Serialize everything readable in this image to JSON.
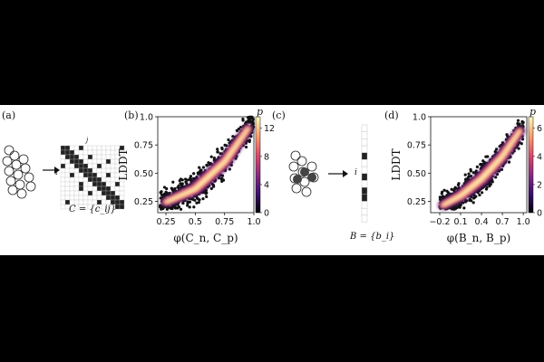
{
  "panels": {
    "a": {
      "label": "(a)",
      "matrix_row_label": "i",
      "matrix_col_label": "j",
      "caption": "C = {c_ij}"
    },
    "c": {
      "label": "(c)",
      "vector_row_label": "i",
      "caption": "B = {b_i}"
    }
  },
  "chart_data": [
    {
      "panel_label": "(b)",
      "type": "scatter",
      "xlabel": "φ(C_n, C_p)",
      "ylabel": "LDDT",
      "colorbar_label": "p",
      "colorbar_ticks": [
        "0",
        "4",
        "8",
        "12"
      ],
      "x_ticks": [
        "0.25",
        "0.5",
        "0.75",
        "1.0"
      ],
      "y_ticks": [
        "0.25",
        "0.50",
        "0.75",
        "1.0"
      ],
      "xlim": [
        0.18,
        1.0
      ],
      "ylim": [
        0.15,
        1.0
      ],
      "colormap": [
        "#000004",
        "#3b0f70",
        "#8c2981",
        "#de4968",
        "#fe9f6d",
        "#fcfdbf"
      ],
      "trend": [
        [
          0.2,
          0.22
        ],
        [
          0.5,
          0.36
        ],
        [
          0.75,
          0.6
        ],
        [
          0.92,
          0.85
        ],
        [
          1.0,
          0.97
        ]
      ]
    },
    {
      "panel_label": "(d)",
      "type": "scatter",
      "xlabel": "φ(B_n, B_p)",
      "ylabel": "LDDT",
      "colorbar_label": "p",
      "colorbar_ticks": [
        "0",
        "2",
        "4",
        "6"
      ],
      "x_ticks": [
        "−0.2",
        "0.1",
        "0.4",
        "0.7",
        "1.0"
      ],
      "y_ticks": [
        "0.25",
        "0.50",
        "0.75",
        "1.0"
      ],
      "xlim": [
        -0.33,
        1.05
      ],
      "ylim": [
        0.15,
        1.0
      ],
      "colormap": [
        "#000004",
        "#3b0f70",
        "#8c2981",
        "#de4968",
        "#fe9f6d",
        "#fcfdbf"
      ],
      "trend": [
        [
          -0.2,
          0.2
        ],
        [
          0.1,
          0.3
        ],
        [
          0.4,
          0.45
        ],
        [
          0.7,
          0.65
        ],
        [
          1.0,
          0.92
        ]
      ]
    }
  ]
}
